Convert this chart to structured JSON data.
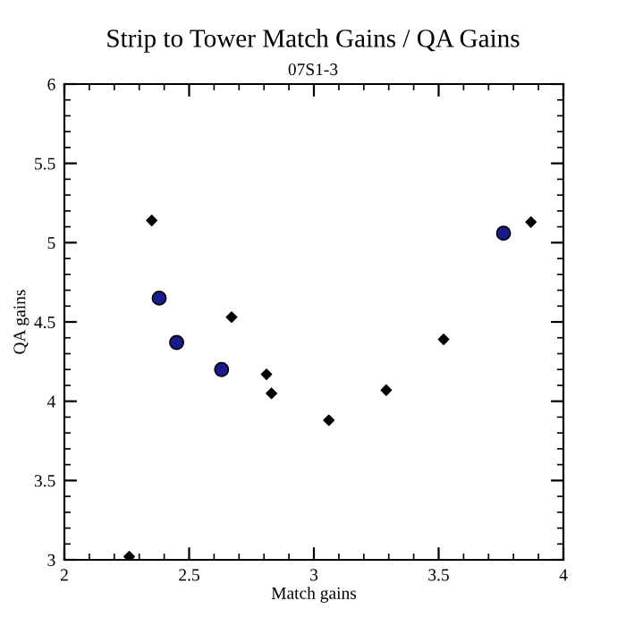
{
  "chart_data": {
    "type": "scatter",
    "title": "Strip to Tower Match Gains / QA Gains",
    "subtitle": "07S1-3",
    "xlabel": "Match gains",
    "ylabel": "QA gains",
    "series": [
      {
        "color": "#000000",
        "marker": "diamond",
        "x": [
          2.26,
          2.35,
          2.67,
          2.81,
          2.83,
          3.06,
          3.29,
          3.52,
          3.87
        ],
        "values": [
          3.02,
          5.14,
          4.53,
          4.17,
          4.05,
          3.88,
          4.07,
          4.39,
          5.13
        ]
      },
      {
        "color": "#1a1a8c",
        "marker": "circle",
        "x": [
          2.38,
          2.45,
          2.63,
          3.76
        ],
        "values": [
          4.65,
          4.37,
          4.2,
          5.06
        ]
      }
    ],
    "xlim": [
      2,
      4
    ],
    "xticks": [
      2,
      2.5,
      3,
      3.5,
      4
    ],
    "ylim": [
      3,
      6
    ],
    "yticks": [
      3,
      3.5,
      4,
      4.5,
      5,
      5.5,
      6
    ],
    "grid": false,
    "legend": false
  }
}
